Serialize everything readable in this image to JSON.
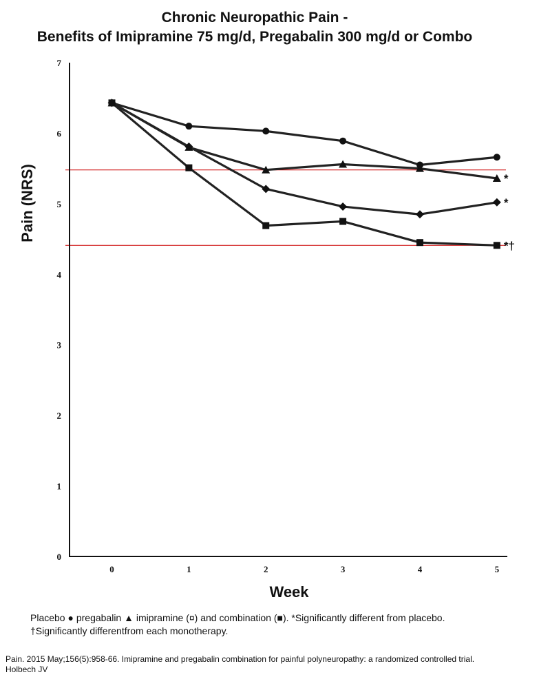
{
  "chart_data": {
    "type": "line",
    "title": "Chronic Neuropathic Pain -",
    "subtitle": "Benefits of Imipramine 75 mg/d, Pregabalin 300 mg/d or Combo",
    "xlabel": "Week",
    "ylabel": "Pain (NRS)",
    "x": [
      0,
      1,
      2,
      3,
      4,
      5
    ],
    "x_ticks": [
      "0",
      "1",
      "2",
      "3",
      "4",
      "5"
    ],
    "y_ticks": [
      "0",
      "1",
      "2",
      "3",
      "4",
      "5",
      "6",
      "7"
    ],
    "xlim": [
      -0.55,
      5.1
    ],
    "ylim": [
      0,
      7
    ],
    "grid": false,
    "series": [
      {
        "marker": "circle",
        "values": [
          6.43,
          6.1,
          6.03,
          5.89,
          5.55,
          5.66
        ],
        "end_label": ""
      },
      {
        "marker": "triangle",
        "values": [
          6.43,
          5.8,
          5.48,
          5.56,
          5.5,
          5.36
        ],
        "end_label": "*"
      },
      {
        "marker": "diamond",
        "values": [
          6.43,
          5.81,
          5.21,
          4.96,
          4.85,
          5.02
        ],
        "end_label": "*"
      },
      {
        "marker": "square",
        "values": [
          6.43,
          5.51,
          4.69,
          4.75,
          4.45,
          4.41
        ],
        "end_label": "*†"
      }
    ],
    "reference_lines": [
      {
        "y": 5.48,
        "color": "#cc0000"
      },
      {
        "y": 4.41,
        "color": "#cc0000"
      }
    ],
    "line_color": "#222222"
  },
  "caption": {
    "line1": "Placebo ●   pregabalin ▲  imipramine (¤) and combination (■). *Significantly different from placebo.",
    "line2": "†Significantly differentfrom each monotherapy."
  },
  "citation": {
    "line1": "Pain. 2015 May;156(5):958-66. Imipramine and pregabalin combination for painful polyneuropathy: a randomized controlled trial.",
    "line2": "Holbech JV"
  }
}
